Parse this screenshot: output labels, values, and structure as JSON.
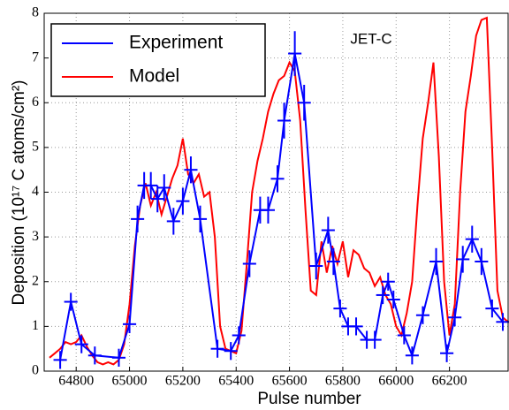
{
  "chart_data": {
    "type": "line",
    "x_label": "Pulse number",
    "y_label": "Deposition (10¹⁷ C atoms/cm²)",
    "annotation": "JET-C",
    "xlim": [
      64680,
      66420
    ],
    "ylim": [
      0,
      8
    ],
    "xticks": [
      64800,
      65000,
      65200,
      65400,
      65600,
      65800,
      66000,
      66200
    ],
    "yticks": [
      0,
      1,
      2,
      3,
      4,
      5,
      6,
      7,
      8
    ],
    "grid": true,
    "legend": "upper left",
    "series": [
      {
        "name": "Experiment",
        "color": "#0000ff",
        "xerr": 25,
        "x": [
          64740,
          64780,
          64820,
          64870,
          64960,
          65000,
          65030,
          65055,
          65080,
          65105,
          65130,
          65165,
          65200,
          65230,
          65265,
          65330,
          65380,
          65410,
          65450,
          65490,
          65520,
          65555,
          65580,
          65620,
          65655,
          65700,
          65745,
          65765,
          65790,
          65820,
          65850,
          65890,
          65920,
          65950,
          65970,
          65990,
          66030,
          66060,
          66100,
          66150,
          66190,
          66220,
          66250,
          66285,
          66320,
          66360,
          66400
        ],
        "values": [
          0.25,
          1.55,
          0.6,
          0.35,
          0.3,
          1.05,
          3.4,
          4.15,
          4.15,
          3.85,
          4.1,
          3.35,
          3.8,
          4.5,
          3.4,
          0.5,
          0.45,
          0.8,
          2.4,
          3.6,
          3.6,
          4.3,
          5.6,
          7.1,
          6.0,
          2.35,
          3.15,
          2.45,
          1.4,
          1.0,
          1.0,
          0.7,
          0.7,
          1.7,
          2.0,
          1.6,
          0.8,
          0.35,
          1.25,
          2.45,
          0.4,
          1.2,
          2.5,
          2.95,
          2.45,
          1.4,
          1.1
        ],
        "yerr": [
          0.2,
          0.2,
          0.2,
          0.2,
          0.2,
          0.2,
          0.3,
          0.3,
          0.3,
          0.3,
          0.3,
          0.3,
          0.3,
          0.3,
          0.3,
          0.2,
          0.2,
          0.2,
          0.3,
          0.3,
          0.3,
          0.3,
          0.4,
          0.5,
          0.4,
          0.3,
          0.3,
          0.3,
          0.2,
          0.2,
          0.2,
          0.2,
          0.2,
          0.2,
          0.2,
          0.2,
          0.2,
          0.2,
          0.2,
          0.3,
          0.2,
          0.2,
          0.3,
          0.3,
          0.3,
          0.2,
          0.2
        ]
      },
      {
        "name": "Model",
        "color": "#ff0000",
        "x": [
          64700,
          64720,
          64740,
          64760,
          64780,
          64800,
          64820,
          64840,
          64860,
          64880,
          64900,
          64920,
          64940,
          64960,
          64980,
          65000,
          65020,
          65040,
          65060,
          65080,
          65100,
          65120,
          65140,
          65160,
          65180,
          65200,
          65220,
          65240,
          65260,
          65280,
          65300,
          65320,
          65340,
          65360,
          65380,
          65400,
          65420,
          65440,
          65460,
          65480,
          65500,
          65520,
          65540,
          65560,
          65580,
          65600,
          65620,
          65640,
          65660,
          65680,
          65700,
          65720,
          65740,
          65760,
          65780,
          65800,
          65820,
          65840,
          65860,
          65880,
          65900,
          65920,
          65940,
          65960,
          65980,
          66000,
          66020,
          66040,
          66060,
          66080,
          66100,
          66120,
          66140,
          66160,
          66180,
          66200,
          66220,
          66240,
          66260,
          66280,
          66300,
          66320,
          66340,
          66360,
          66380,
          66400,
          66420
        ],
        "values": [
          0.3,
          0.4,
          0.5,
          0.65,
          0.6,
          0.65,
          0.8,
          0.55,
          0.35,
          0.2,
          0.15,
          0.2,
          0.15,
          0.25,
          0.6,
          1.5,
          2.8,
          3.7,
          4.2,
          3.7,
          4.0,
          3.5,
          3.9,
          4.3,
          4.6,
          5.2,
          4.4,
          4.2,
          4.4,
          3.9,
          4.0,
          3.0,
          1.0,
          0.5,
          0.45,
          0.4,
          0.9,
          2.4,
          4.0,
          4.7,
          5.2,
          5.8,
          6.2,
          6.5,
          6.6,
          6.9,
          6.7,
          5.6,
          3.6,
          1.8,
          1.7,
          2.9,
          2.2,
          2.8,
          2.4,
          2.9,
          2.1,
          2.7,
          2.6,
          2.3,
          2.2,
          1.9,
          2.1,
          1.7,
          1.5,
          1.0,
          0.8,
          1.3,
          2.0,
          3.7,
          5.2,
          6.0,
          6.9,
          4.8,
          2.0,
          0.8,
          1.5,
          4.0,
          5.8,
          6.6,
          7.5,
          7.85,
          7.9,
          5.0,
          1.8,
          1.2,
          1.1
        ]
      }
    ]
  }
}
